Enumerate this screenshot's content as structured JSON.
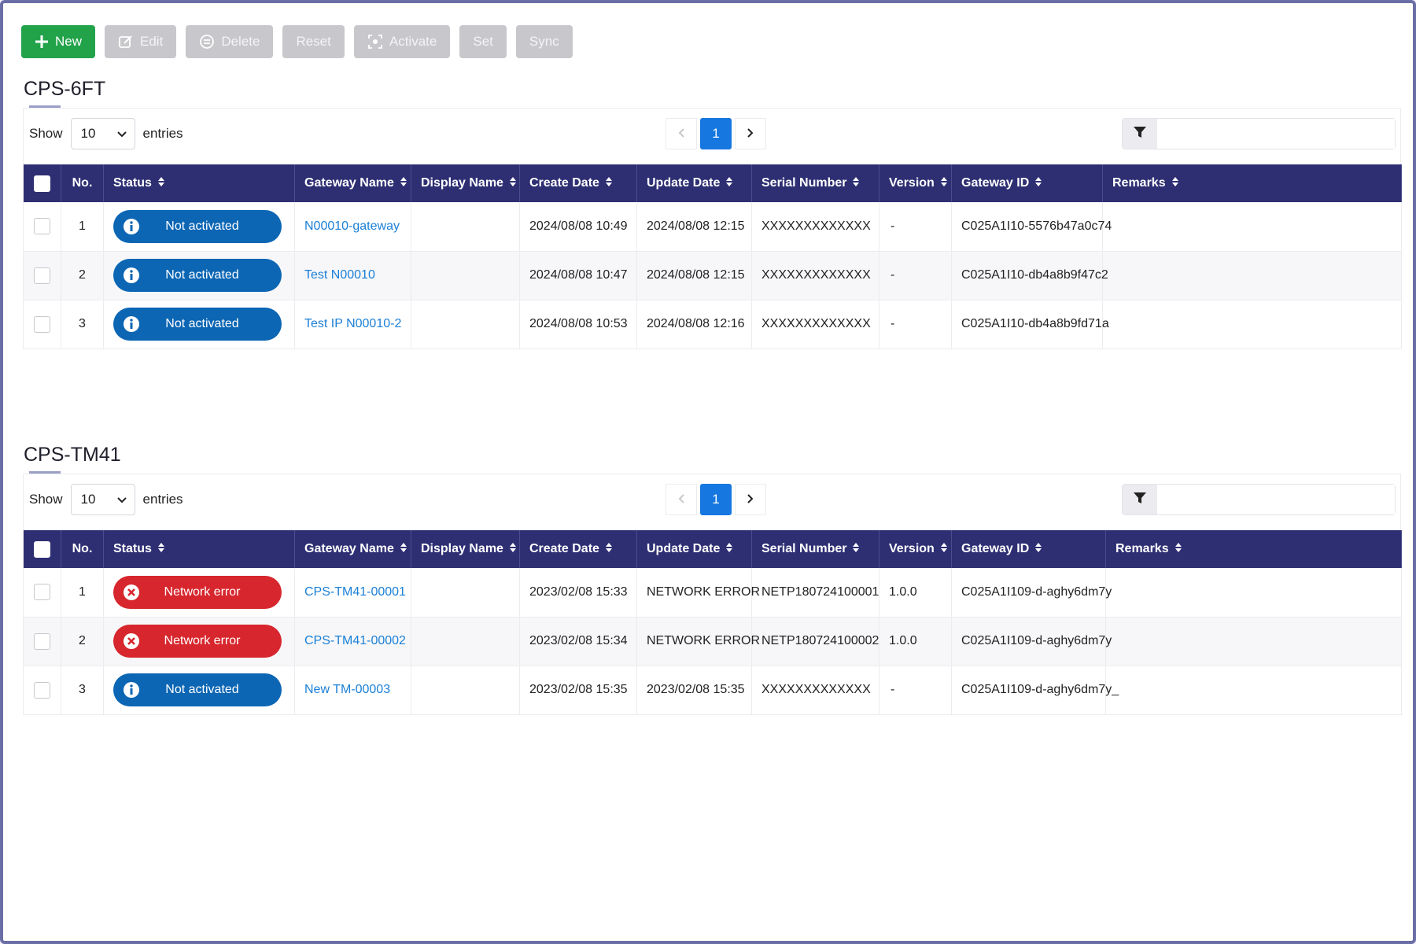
{
  "toolbar": {
    "new": "New",
    "edit": "Edit",
    "delete": "Delete",
    "reset": "Reset",
    "activate": "Activate",
    "set": "Set",
    "sync": "Sync"
  },
  "colors": {
    "primary_button": "#22a34a",
    "header_bg": "#2e2f73",
    "info_badge": "#0c66b4",
    "error_badge": "#d7262d",
    "link": "#1a7fd6",
    "pager_active": "#1677e0"
  },
  "controls": {
    "show_label": "Show",
    "page_size": "10",
    "entries_label": "entries",
    "current_page": "1",
    "prev_icon": "chevron-left-icon",
    "next_icon": "chevron-right-icon",
    "filter_icon": "filter-icon",
    "filter_placeholder": ""
  },
  "columns": [
    "No.",
    "Status",
    "Gateway Name",
    "Display Name",
    "Create Date",
    "Update Date",
    "Serial Number",
    "Version",
    "Gateway ID",
    "Remarks"
  ],
  "sections": [
    {
      "title": "CPS-6FT",
      "rows": [
        {
          "no": "1",
          "status": "Not activated",
          "status_type": "info",
          "gateway_name": "N00010-gateway",
          "display_name": "",
          "create_date": "2024/08/08 10:49",
          "update_date": "2024/08/08 12:15",
          "serial": "XXXXXXXXXXXXX",
          "version": "-",
          "gateway_id": "C025A1I10-5576b47a0c74",
          "remarks": ""
        },
        {
          "no": "2",
          "status": "Not activated",
          "status_type": "info",
          "gateway_name": "Test N00010",
          "display_name": "",
          "create_date": "2024/08/08 10:47",
          "update_date": "2024/08/08 12:15",
          "serial": "XXXXXXXXXXXXX",
          "version": "-",
          "gateway_id": "C025A1I10-db4a8b9f47c2",
          "remarks": ""
        },
        {
          "no": "3",
          "status": "Not activated",
          "status_type": "info",
          "gateway_name": "Test IP N00010-2",
          "display_name": "",
          "create_date": "2024/08/08 10:53",
          "update_date": "2024/08/08 12:16",
          "serial": "XXXXXXXXXXXXX",
          "version": "-",
          "gateway_id": "C025A1I10-db4a8b9fd71a",
          "remarks": ""
        }
      ]
    },
    {
      "title": "CPS-TM41",
      "rows": [
        {
          "no": "1",
          "status": "Network error",
          "status_type": "err",
          "gateway_name": "CPS-TM41-00001",
          "display_name": "",
          "create_date": "2023/02/08 15:33",
          "update_date": "NETWORK ERROR",
          "serial": "NETP180724100001",
          "version": "1.0.0",
          "gateway_id": "C025A1I109-d-aghy6dm7y",
          "remarks": ""
        },
        {
          "no": "2",
          "status": "Network error",
          "status_type": "err",
          "gateway_name": "CPS-TM41-00002",
          "display_name": "",
          "create_date": "2023/02/08 15:34",
          "update_date": "NETWORK ERROR",
          "serial": "NETP180724100002",
          "version": "1.0.0",
          "gateway_id": "C025A1I109-d-aghy6dm7y",
          "remarks": ""
        },
        {
          "no": "3",
          "status": "Not activated",
          "status_type": "info",
          "gateway_name": "New TM-00003",
          "display_name": "",
          "create_date": "2023/02/08 15:35",
          "update_date": "2023/02/08 15:35",
          "serial": "XXXXXXXXXXXXX",
          "version": "-",
          "gateway_id": "C025A1I109-d-aghy6dm7y_",
          "remarks": ""
        }
      ]
    }
  ]
}
